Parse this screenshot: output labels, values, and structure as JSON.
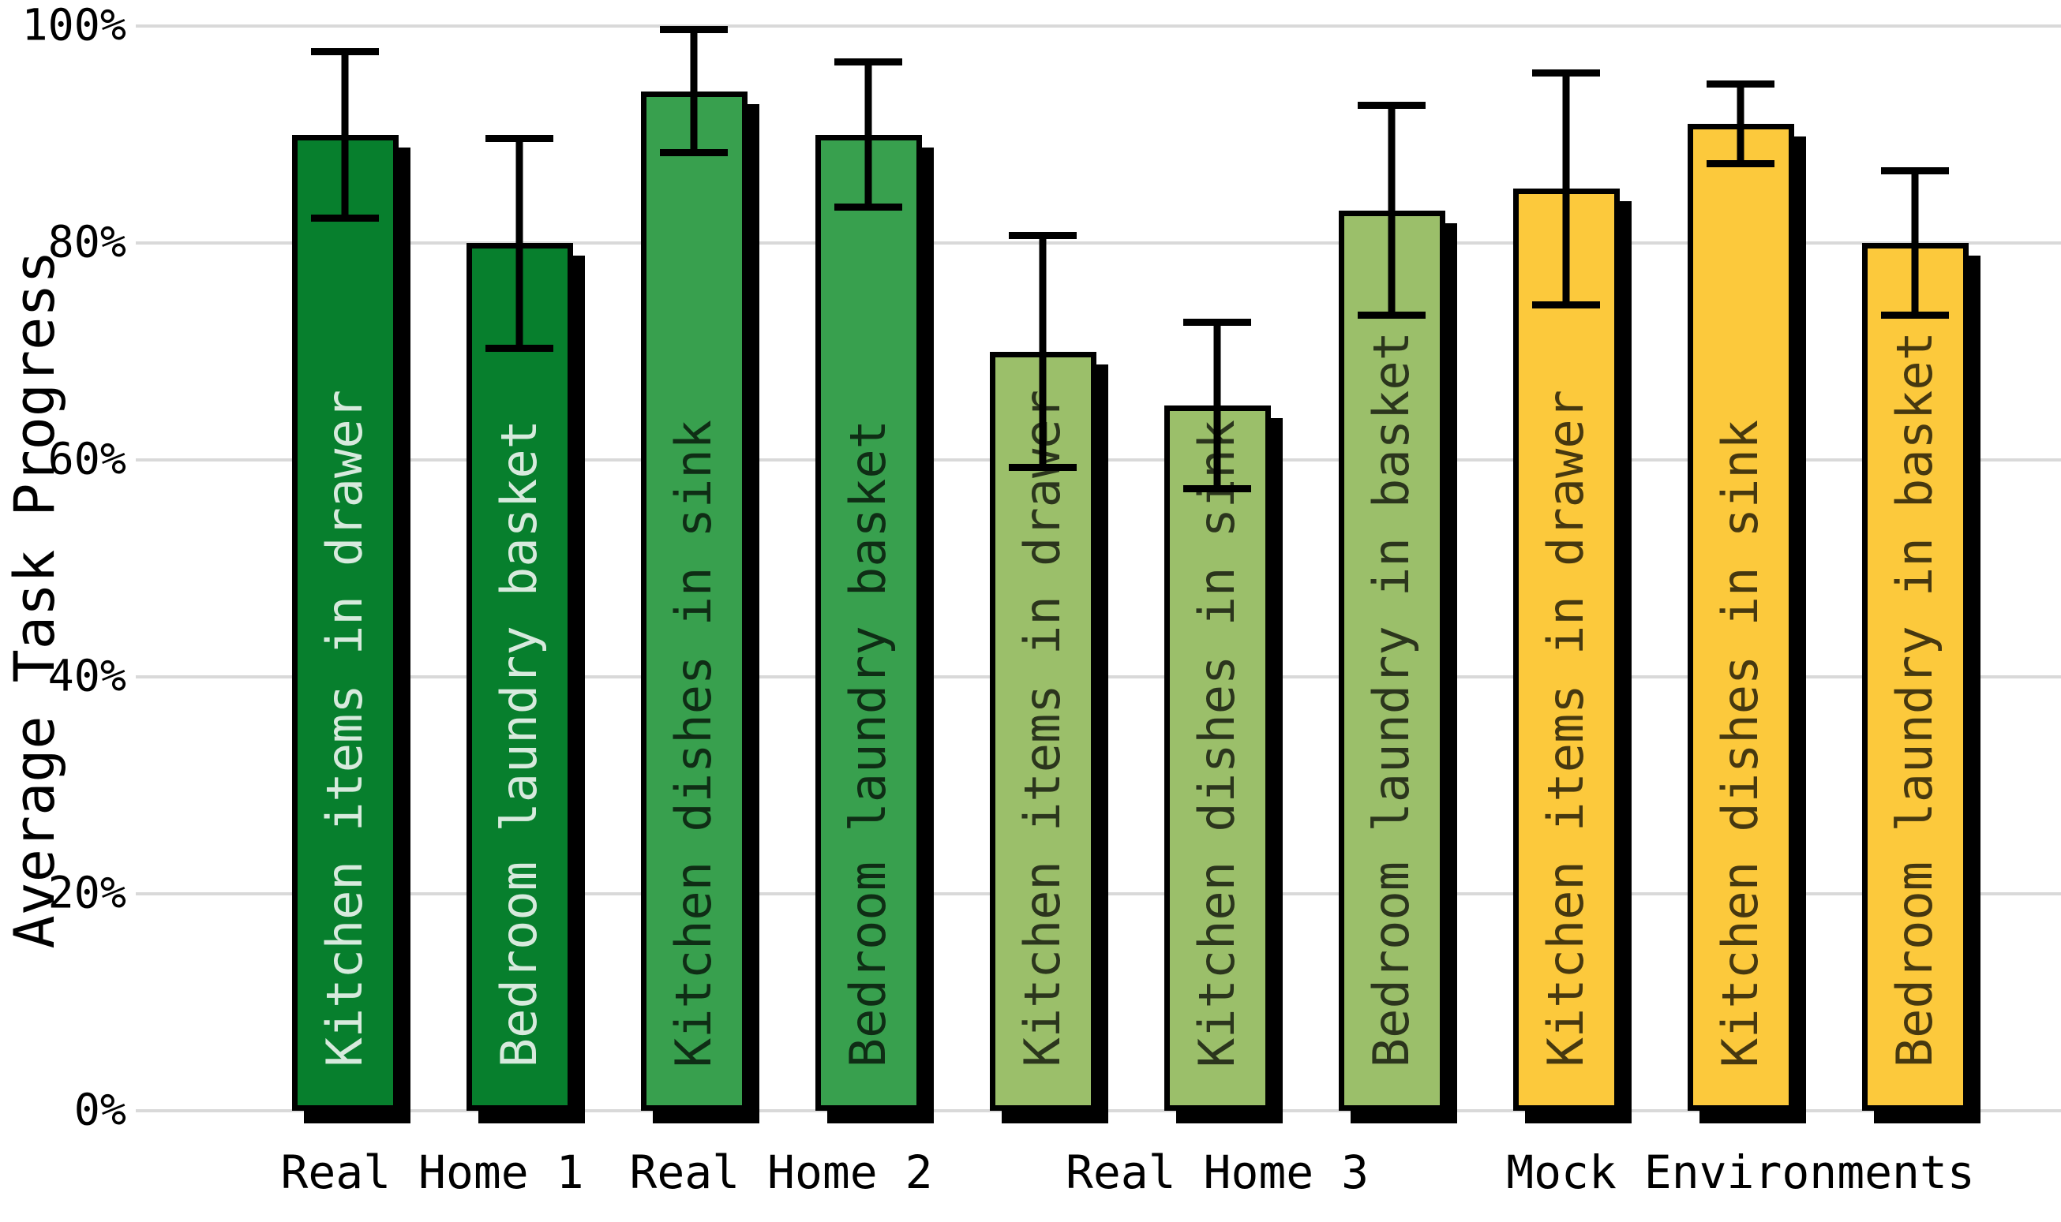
{
  "chart_data": {
    "type": "bar",
    "title": "",
    "xlabel": "",
    "ylabel": "Average Task Progress",
    "ylim": [
      0,
      100
    ],
    "yticks": [
      0,
      20,
      40,
      60,
      80,
      100
    ],
    "ytick_labels": [
      "0%",
      "20%",
      "40%",
      "60%",
      "80%",
      "100%"
    ],
    "grid": true,
    "legend": "none",
    "bar_border_color": "#000000",
    "error_bar_color": "#000000",
    "grid_color": "#d9d9d9",
    "background_color": "#ffffff",
    "groups": [
      {
        "label": "Real Home 1",
        "color": "#077f2d",
        "label_text_color": "rgba(255,255,255,0.84)",
        "bars": [
          {
            "task": "Kitchen items in drawer",
            "value": 90,
            "err_low": 82,
            "err_high": 98
          },
          {
            "task": "Bedroom laundry basket",
            "value": 80,
            "err_low": 70,
            "err_high": 90
          }
        ]
      },
      {
        "label": "Real Home 2",
        "color": "#38a04e",
        "label_text_color": "rgba(0,0,0,0.72)",
        "bars": [
          {
            "task": "Kitchen dishes in sink",
            "value": 94,
            "err_low": 88,
            "err_high": 100
          },
          {
            "task": "Bedroom laundry basket",
            "value": 90,
            "err_low": 83,
            "err_high": 97
          }
        ]
      },
      {
        "label": "Real Home 3",
        "color": "#9bbf6a",
        "label_text_color": "rgba(0,0,0,0.72)",
        "bars": [
          {
            "task": "Kitchen items in drawer",
            "value": 70,
            "err_low": 59,
            "err_high": 81
          },
          {
            "task": "Kitchen dishes in sink",
            "value": 65,
            "err_low": 57,
            "err_high": 73
          },
          {
            "task": "Bedroom laundry in basket",
            "value": 83,
            "err_low": 73,
            "err_high": 93
          }
        ]
      },
      {
        "label": "Mock Environments",
        "color": "#fcc93c",
        "label_text_color": "rgba(0,0,0,0.72)",
        "bars": [
          {
            "task": "Kitchen items in drawer",
            "value": 85,
            "err_low": 74,
            "err_high": 96
          },
          {
            "task": "Kitchen dishes in sink",
            "value": 91,
            "err_low": 87,
            "err_high": 95
          },
          {
            "task": "Bedroom laundry in basket",
            "value": 80,
            "err_low": 73,
            "err_high": 87
          }
        ]
      }
    ]
  }
}
